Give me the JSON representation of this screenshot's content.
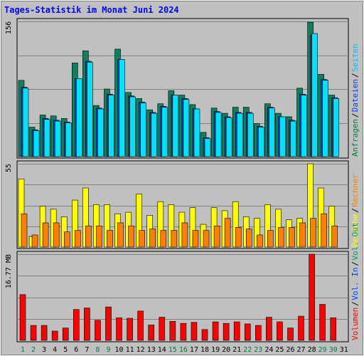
{
  "title": "Tages-Statistik im Monat Juni 2024",
  "chart_data": [
    {
      "type": "bar",
      "panel": "top",
      "ymax_label": "156",
      "ylim": [
        0,
        156
      ],
      "grid": true,
      "right_legend": [
        {
          "text": "Anfragen",
          "color": "#008040"
        },
        {
          "text": "Dateien",
          "color": "#0040ff"
        },
        {
          "text": "Seiten",
          "color": "#00c0ff"
        }
      ],
      "series": [
        {
          "name": "Anfragen",
          "color": "#0f7f5f",
          "values": [
            88,
            34,
            48,
            47,
            44,
            108,
            122,
            59,
            78,
            124,
            74,
            67,
            54,
            61,
            76,
            71,
            60,
            28,
            56,
            50,
            57,
            57,
            38,
            61,
            50,
            46,
            79,
            155,
            95,
            71
          ]
        },
        {
          "name": "Dateien",
          "color": "#2040b0",
          "values": [
            80,
            31,
            44,
            42,
            40,
            90,
            110,
            56,
            72,
            112,
            70,
            63,
            51,
            58,
            71,
            67,
            55,
            22,
            52,
            46,
            51,
            51,
            35,
            57,
            46,
            42,
            72,
            140,
            89,
            68
          ]
        },
        {
          "name": "Seiten",
          "color": "#00e0ff",
          "values": [
            79,
            30,
            43,
            41,
            39,
            90,
            109,
            55,
            71,
            112,
            69,
            62,
            50,
            57,
            71,
            66,
            55,
            21,
            51,
            45,
            50,
            50,
            34,
            56,
            46,
            41,
            71,
            142,
            88,
            67
          ]
        }
      ]
    },
    {
      "type": "bar",
      "panel": "middle",
      "ymax_label": "55",
      "ylim": [
        0,
        55
      ],
      "grid": true,
      "right_legend": [
        {
          "text": "Besuche",
          "color": "#ffff00"
        },
        {
          "text": "Rechner",
          "color": "#ff8000"
        }
      ],
      "series": [
        {
          "name": "Besuche",
          "color": "#ffff00",
          "values": [
            45,
            7,
            27,
            25,
            20,
            31,
            39,
            28,
            28,
            22,
            23,
            35,
            21,
            30,
            28,
            23,
            26,
            15,
            26,
            24,
            30,
            20,
            19,
            28,
            25,
            18,
            19,
            55,
            39,
            27
          ]
        },
        {
          "name": "Rechner",
          "color": "#ff8000",
          "values": [
            22,
            8,
            16,
            16,
            10,
            11,
            14,
            14,
            11,
            16,
            14,
            11,
            12,
            11,
            11,
            16,
            11,
            11,
            14,
            19,
            13,
            12,
            8,
            11,
            13,
            13,
            16,
            19,
            22,
            14
          ]
        }
      ]
    },
    {
      "type": "bar",
      "panel": "bottom",
      "ymax_label": "16.77 MB",
      "ylim": [
        0,
        16.77
      ],
      "grid": true,
      "right_legend": [
        {
          "text": "Volumen",
          "color": "#ff0000"
        },
        {
          "text": "Vol. In",
          "color": "#0040ff"
        },
        {
          "text": "Vol. Out",
          "color": "#00a060"
        }
      ],
      "series": [
        {
          "name": "Volumen",
          "color": "#ff0000",
          "values": [
            8.9,
            2.9,
            2.9,
            1.8,
            2.4,
            6.0,
            6.3,
            3.9,
            6.5,
            4.4,
            4.3,
            5.7,
            3.0,
            4.5,
            3.7,
            3.3,
            3.5,
            2.1,
            3.6,
            3.3,
            3.6,
            3.2,
            2.9,
            4.5,
            3.6,
            2.4,
            4.7,
            16.77,
            7.0,
            4.4
          ]
        }
      ]
    }
  ],
  "x_labels": [
    "1",
    "2",
    "3",
    "4",
    "5",
    "6",
    "7",
    "8",
    "9",
    "10",
    "11",
    "12",
    "13",
    "14",
    "15",
    "16",
    "17",
    "18",
    "19",
    "20",
    "21",
    "22",
    "23",
    "24",
    "25",
    "26",
    "27",
    "28",
    "29",
    "30",
    "31"
  ],
  "weekend_days": [
    1,
    2,
    8,
    9,
    15,
    16,
    22,
    23,
    29,
    30
  ],
  "weekend_color": "#008040",
  "label_color": "#000000"
}
